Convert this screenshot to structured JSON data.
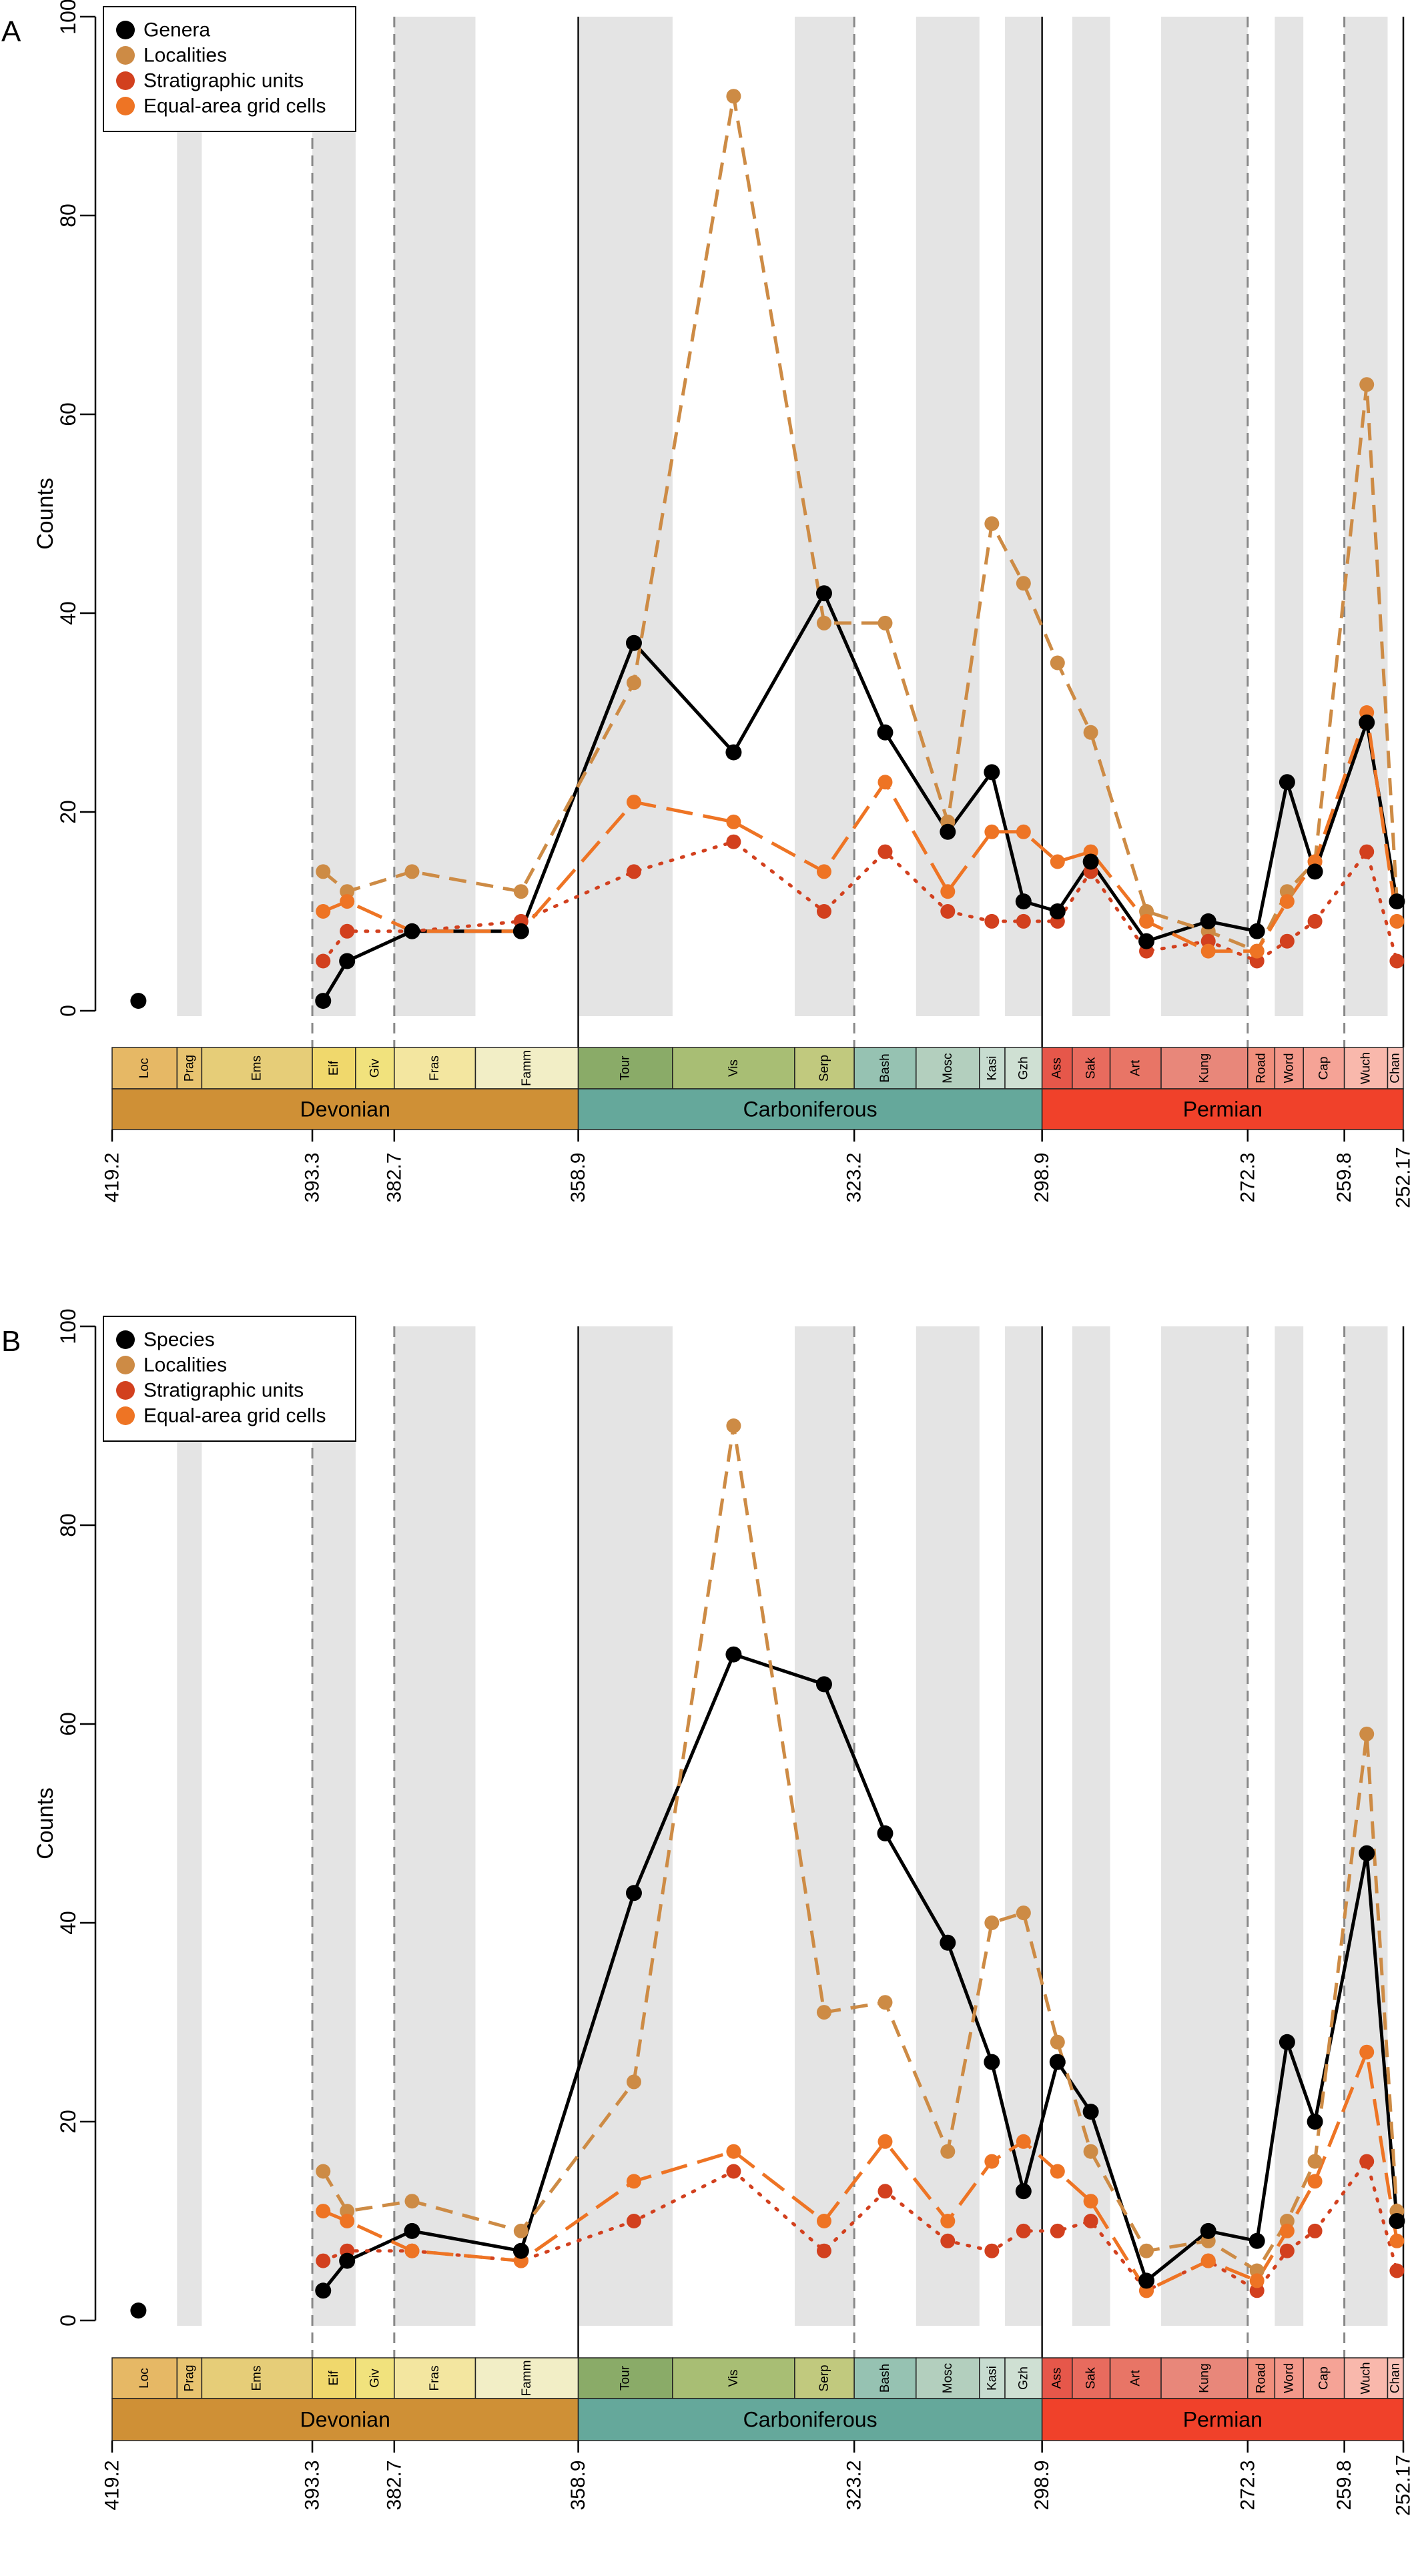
{
  "panels": [
    {
      "label": "A"
    },
    {
      "label": "B"
    }
  ],
  "chart_data": [
    {
      "type": "line",
      "panel": "A",
      "ylabel": "Counts",
      "xlabel": "",
      "ylim": [
        0,
        100
      ],
      "xlim": [
        419.2,
        252.17
      ],
      "y_ticks": [
        "0",
        "20",
        "40",
        "60",
        "80",
        "100"
      ],
      "x_ticks": [
        "419.2",
        "393.3",
        "382.7",
        "358.9",
        "323.2",
        "298.9",
        "272.3",
        "259.8",
        "252.17"
      ],
      "legend": "top-left",
      "grid": false,
      "periods": [
        {
          "name": "Devonian",
          "start": 419.2,
          "end": 358.9,
          "color": "#cf9036"
        },
        {
          "name": "Carboniferous",
          "start": 358.9,
          "end": 298.9,
          "color": "#65a89b"
        },
        {
          "name": "Permian",
          "start": 298.9,
          "end": 252.17,
          "color": "#f0412a"
        }
      ],
      "stages": [
        {
          "name": "Loc",
          "start": 419.2,
          "end": 410.8,
          "color": "#e6b865"
        },
        {
          "name": "Prag",
          "start": 410.8,
          "end": 407.6,
          "color": "#e8c470"
        },
        {
          "name": "Ems",
          "start": 407.6,
          "end": 393.3,
          "color": "#e6cd78"
        },
        {
          "name": "Eif",
          "start": 393.3,
          "end": 387.7,
          "color": "#f0d86c"
        },
        {
          "name": "Giv",
          "start": 387.7,
          "end": 382.7,
          "color": "#f1e27d"
        },
        {
          "name": "Fras",
          "start": 382.7,
          "end": 372.2,
          "color": "#f3e6a0"
        },
        {
          "name": "Famm",
          "start": 372.2,
          "end": 358.9,
          "color": "#f2eec6"
        },
        {
          "name": "Tour",
          "start": 358.9,
          "end": 346.7,
          "color": "#8aab68"
        },
        {
          "name": "Vis",
          "start": 346.7,
          "end": 330.9,
          "color": "#a8be74"
        },
        {
          "name": "Serp",
          "start": 330.9,
          "end": 323.2,
          "color": "#c1c97e"
        },
        {
          "name": "Bash",
          "start": 323.2,
          "end": 315.2,
          "color": "#96c2b2"
        },
        {
          "name": "Mosc",
          "start": 315.2,
          "end": 307.0,
          "color": "#b3cfbe"
        },
        {
          "name": "Kasi",
          "start": 307.0,
          "end": 303.7,
          "color": "#c7dcd0"
        },
        {
          "name": "Gzh",
          "start": 303.7,
          "end": 298.9,
          "color": "#cfe0d3"
        },
        {
          "name": "Ass",
          "start": 298.9,
          "end": 295.0,
          "color": "#e6574a"
        },
        {
          "name": "Sak",
          "start": 295.0,
          "end": 290.1,
          "color": "#e86b5e"
        },
        {
          "name": "Art",
          "start": 290.1,
          "end": 283.5,
          "color": "#e87566"
        },
        {
          "name": "Kung",
          "start": 283.5,
          "end": 272.3,
          "color": "#e8877a"
        },
        {
          "name": "Road",
          "start": 272.3,
          "end": 268.8,
          "color": "#f08f7c"
        },
        {
          "name": "Word",
          "start": 268.8,
          "end": 265.1,
          "color": "#f3988a"
        },
        {
          "name": "Cap",
          "start": 265.1,
          "end": 259.8,
          "color": "#f5a396"
        },
        {
          "name": "Wuch",
          "start": 259.8,
          "end": 254.2,
          "color": "#f9b8ac"
        },
        {
          "name": "Chan",
          "start": 254.2,
          "end": 252.17,
          "color": "#fac2b8"
        }
      ],
      "series": [
        {
          "name": "Genera",
          "color": "#000000",
          "style": "solid",
          "x": [
            415.8,
            391.9,
            388.8,
            380.4,
            366.3,
            351.7,
            338.8,
            327.1,
            319.2,
            311.1,
            305.4,
            301.3,
            296.9,
            292.6,
            285.4,
            277.4,
            271.1,
            267.2,
            263.6,
            256.9,
            253.0
          ],
          "y": [
            1,
            1,
            5,
            8,
            8,
            37,
            26,
            42,
            28,
            18,
            24,
            11,
            10,
            15,
            7,
            9,
            8,
            23,
            14,
            29,
            11
          ]
        },
        {
          "name": "Localities",
          "color": "#cd8b45",
          "style": "dashed",
          "x": [
            391.9,
            388.8,
            380.4,
            366.3,
            351.7,
            338.8,
            327.1,
            319.2,
            311.1,
            305.4,
            301.3,
            296.9,
            292.6,
            285.4,
            277.4,
            271.1,
            267.2,
            263.6,
            256.9,
            253.0
          ],
          "y": [
            14,
            12,
            14,
            12,
            33,
            92,
            39,
            39,
            19,
            49,
            43,
            35,
            28,
            10,
            8,
            6,
            12,
            15,
            63,
            11
          ]
        },
        {
          "name": "Stratigraphic units",
          "color": "#d2401e",
          "style": "dotted",
          "x": [
            391.9,
            388.8,
            380.4,
            366.3,
            351.7,
            338.8,
            327.1,
            319.2,
            311.1,
            305.4,
            301.3,
            296.9,
            292.6,
            285.4,
            277.4,
            271.1,
            267.2,
            263.6,
            256.9,
            253.0
          ],
          "y": [
            5,
            8,
            8,
            9,
            14,
            17,
            10,
            16,
            10,
            9,
            9,
            9,
            14,
            6,
            7,
            5,
            7,
            9,
            16,
            5
          ]
        },
        {
          "name": "Equal-area grid cells",
          "color": "#ee7424",
          "style": "longdash",
          "x": [
            391.9,
            388.8,
            380.4,
            366.3,
            351.7,
            338.8,
            327.1,
            319.2,
            311.1,
            305.4,
            301.3,
            296.9,
            292.6,
            285.4,
            277.4,
            271.1,
            267.2,
            263.6,
            256.9,
            253.0
          ],
          "y": [
            10,
            11,
            8,
            8,
            21,
            19,
            14,
            23,
            12,
            18,
            18,
            15,
            16,
            9,
            6,
            6,
            11,
            15,
            30,
            9
          ]
        }
      ]
    },
    {
      "type": "line",
      "panel": "B",
      "ylabel": "Counts",
      "xlabel": "",
      "ylim": [
        0,
        100
      ],
      "xlim": [
        419.2,
        252.17
      ],
      "y_ticks": [
        "0",
        "20",
        "40",
        "60",
        "80",
        "100"
      ],
      "x_ticks": [
        "419.2",
        "393.3",
        "382.7",
        "358.9",
        "323.2",
        "298.9",
        "272.3",
        "259.8",
        "252.17"
      ],
      "legend": "top-left",
      "grid": false,
      "periods": [
        {
          "name": "Devonian",
          "start": 419.2,
          "end": 358.9,
          "color": "#cf9036"
        },
        {
          "name": "Carboniferous",
          "start": 358.9,
          "end": 298.9,
          "color": "#65a89b"
        },
        {
          "name": "Permian",
          "start": 298.9,
          "end": 252.17,
          "color": "#f0412a"
        }
      ],
      "stages": [
        {
          "name": "Loc",
          "start": 419.2,
          "end": 410.8,
          "color": "#e6b865"
        },
        {
          "name": "Prag",
          "start": 410.8,
          "end": 407.6,
          "color": "#e8c470"
        },
        {
          "name": "Ems",
          "start": 407.6,
          "end": 393.3,
          "color": "#e6cd78"
        },
        {
          "name": "Eif",
          "start": 393.3,
          "end": 387.7,
          "color": "#f0d86c"
        },
        {
          "name": "Giv",
          "start": 387.7,
          "end": 382.7,
          "color": "#f1e27d"
        },
        {
          "name": "Fras",
          "start": 382.7,
          "end": 372.2,
          "color": "#f3e6a0"
        },
        {
          "name": "Famm",
          "start": 372.2,
          "end": 358.9,
          "color": "#f2eec6"
        },
        {
          "name": "Tour",
          "start": 358.9,
          "end": 346.7,
          "color": "#8aab68"
        },
        {
          "name": "Vis",
          "start": 346.7,
          "end": 330.9,
          "color": "#a8be74"
        },
        {
          "name": "Serp",
          "start": 330.9,
          "end": 323.2,
          "color": "#c1c97e"
        },
        {
          "name": "Bash",
          "start": 323.2,
          "end": 315.2,
          "color": "#96c2b2"
        },
        {
          "name": "Mosc",
          "start": 315.2,
          "end": 307.0,
          "color": "#b3cfbe"
        },
        {
          "name": "Kasi",
          "start": 307.0,
          "end": 303.7,
          "color": "#c7dcd0"
        },
        {
          "name": "Gzh",
          "start": 303.7,
          "end": 298.9,
          "color": "#cfe0d3"
        },
        {
          "name": "Ass",
          "start": 298.9,
          "end": 295.0,
          "color": "#e6574a"
        },
        {
          "name": "Sak",
          "start": 295.0,
          "end": 290.1,
          "color": "#e86b5e"
        },
        {
          "name": "Art",
          "start": 290.1,
          "end": 283.5,
          "color": "#e87566"
        },
        {
          "name": "Kung",
          "start": 283.5,
          "end": 272.3,
          "color": "#e8877a"
        },
        {
          "name": "Road",
          "start": 272.3,
          "end": 268.8,
          "color": "#f08f7c"
        },
        {
          "name": "Word",
          "start": 268.8,
          "end": 265.1,
          "color": "#f3988a"
        },
        {
          "name": "Cap",
          "start": 265.1,
          "end": 259.8,
          "color": "#f5a396"
        },
        {
          "name": "Wuch",
          "start": 259.8,
          "end": 254.2,
          "color": "#f9b8ac"
        },
        {
          "name": "Chan",
          "start": 254.2,
          "end": 252.17,
          "color": "#fac2b8"
        }
      ],
      "series": [
        {
          "name": "Species",
          "color": "#000000",
          "style": "solid",
          "x": [
            415.8,
            391.9,
            388.8,
            380.4,
            366.3,
            351.7,
            338.8,
            327.1,
            319.2,
            311.1,
            305.4,
            301.3,
            296.9,
            292.6,
            285.4,
            277.4,
            271.1,
            267.2,
            263.6,
            256.9,
            253.0
          ],
          "y": [
            1,
            3,
            6,
            9,
            7,
            43,
            67,
            64,
            49,
            38,
            26,
            13,
            26,
            21,
            4,
            9,
            8,
            28,
            20,
            47,
            10
          ]
        },
        {
          "name": "Localities",
          "color": "#cd8b45",
          "style": "dashed",
          "x": [
            391.9,
            388.8,
            380.4,
            366.3,
            351.7,
            338.8,
            327.1,
            319.2,
            311.1,
            305.4,
            301.3,
            296.9,
            292.6,
            285.4,
            277.4,
            271.1,
            267.2,
            263.6,
            256.9,
            253.0
          ],
          "y": [
            15,
            11,
            12,
            9,
            24,
            90,
            31,
            32,
            17,
            40,
            41,
            28,
            17,
            7,
            8,
            5,
            10,
            16,
            59,
            11
          ]
        },
        {
          "name": "Stratigraphic units",
          "color": "#d2401e",
          "style": "dotted",
          "x": [
            391.9,
            388.8,
            380.4,
            366.3,
            351.7,
            338.8,
            327.1,
            319.2,
            311.1,
            305.4,
            301.3,
            296.9,
            292.6,
            285.4,
            277.4,
            271.1,
            267.2,
            263.6,
            256.9,
            253.0
          ],
          "y": [
            6,
            7,
            7,
            6,
            10,
            15,
            7,
            13,
            8,
            7,
            9,
            9,
            10,
            3,
            6,
            3,
            7,
            9,
            16,
            5
          ]
        },
        {
          "name": "Equal-area grid cells",
          "color": "#ee7424",
          "style": "longdash",
          "x": [
            391.9,
            388.8,
            380.4,
            366.3,
            351.7,
            338.8,
            327.1,
            319.2,
            311.1,
            305.4,
            301.3,
            296.9,
            292.6,
            285.4,
            277.4,
            271.1,
            267.2,
            263.6,
            256.9,
            253.0
          ],
          "y": [
            11,
            10,
            7,
            6,
            14,
            17,
            10,
            18,
            10,
            16,
            18,
            15,
            12,
            3,
            6,
            4,
            9,
            14,
            27,
            8
          ]
        }
      ]
    }
  ]
}
